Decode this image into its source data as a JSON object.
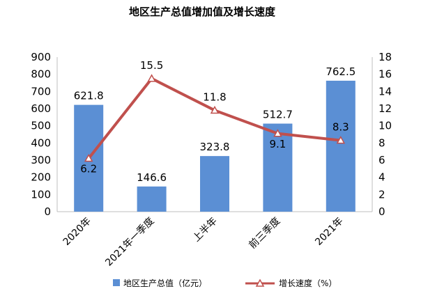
{
  "chart_data": {
    "type": "bar",
    "title": "地区生产总值增加值及增长速度",
    "categories": [
      "2020年",
      "2021年一季度",
      "上半年",
      "前三季度",
      "2021年"
    ],
    "series": [
      {
        "name": "地区生产总值（亿元）",
        "type": "bar",
        "axis": "left",
        "values": [
          621.8,
          146.6,
          323.8,
          512.7,
          762.5
        ],
        "color": "#5b8fd4"
      },
      {
        "name": "增长速度（%）",
        "type": "line",
        "axis": "right",
        "values": [
          6.2,
          15.5,
          11.8,
          9.1,
          8.3
        ],
        "color": "#c0504d"
      }
    ],
    "y_left": {
      "min": 0,
      "max": 900,
      "step": 100,
      "ticks": [
        "0",
        "100",
        "200",
        "300",
        "400",
        "500",
        "600",
        "700",
        "800",
        "900"
      ]
    },
    "y_right": {
      "min": 0,
      "max": 18,
      "step": 2,
      "ticks": [
        "0",
        "2",
        "4",
        "6",
        "8",
        "10",
        "12",
        "14",
        "16",
        "18"
      ]
    },
    "bar_labels": [
      "621.8",
      "146.6",
      "323.8",
      "512.7",
      "762.5"
    ],
    "line_labels": [
      "6.2",
      "15.5",
      "11.8",
      "9.1",
      "8.3"
    ],
    "grid": false,
    "legend_position": "bottom"
  }
}
